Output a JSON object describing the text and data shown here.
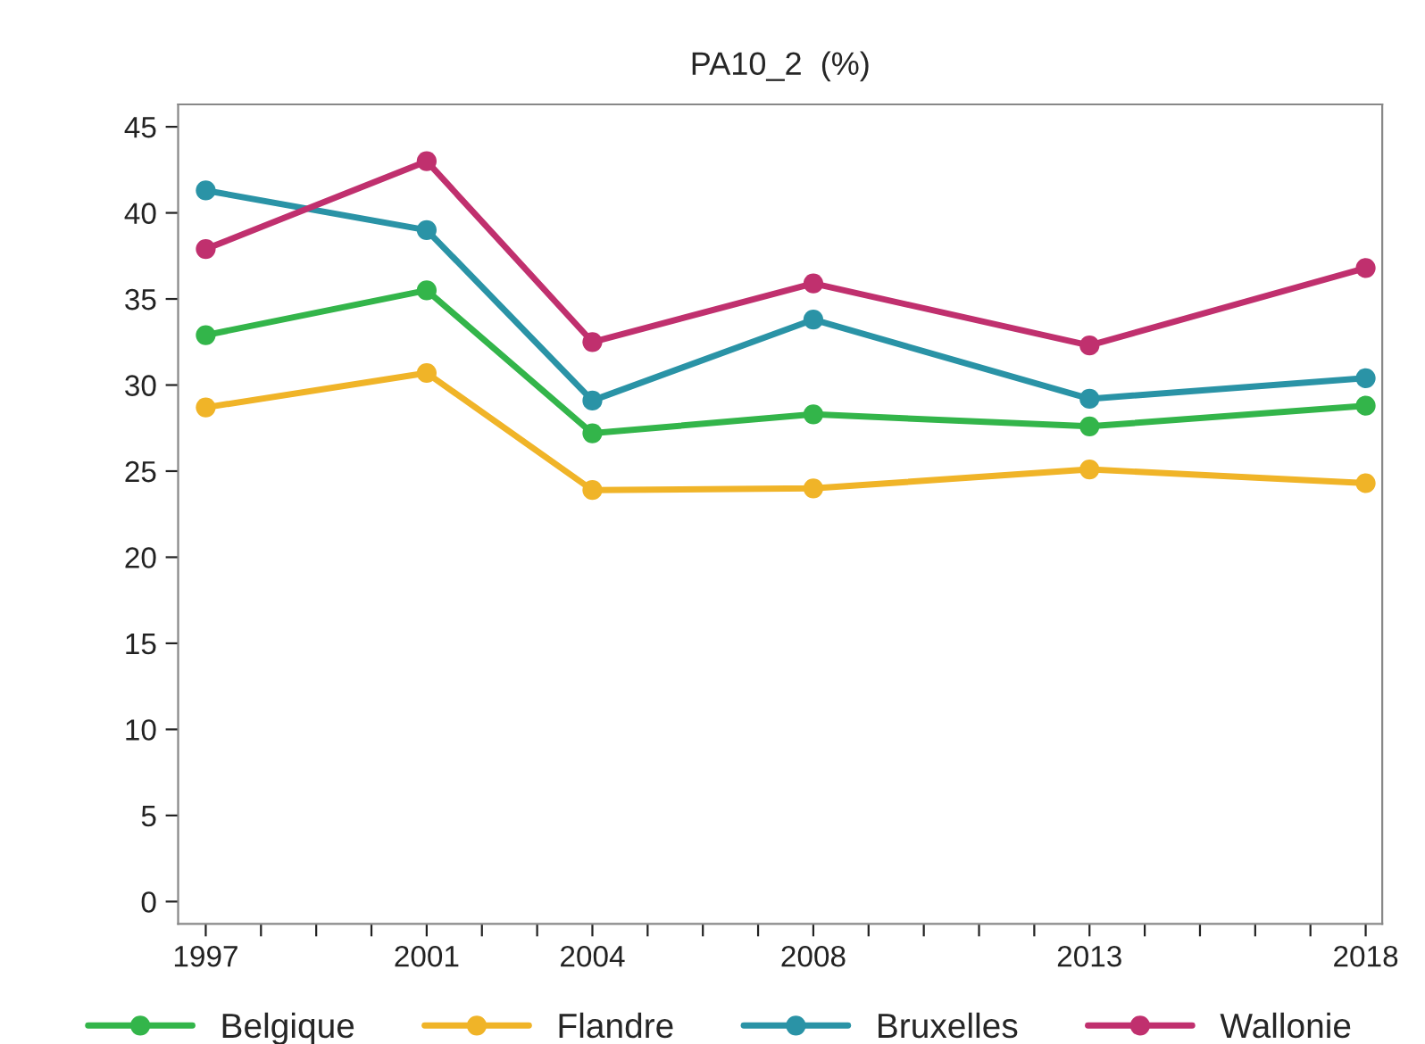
{
  "chart_data": {
    "type": "line",
    "title": "PA10_2  (%)",
    "x": [
      1997,
      2001,
      2004,
      2008,
      2013,
      2018
    ],
    "series": [
      {
        "name": "Belgique",
        "color": "#33b54a",
        "values": [
          32.9,
          35.5,
          27.2,
          28.3,
          27.6,
          28.8
        ]
      },
      {
        "name": "Flandre",
        "color": "#f0b428",
        "values": [
          28.7,
          30.7,
          23.9,
          24.0,
          25.1,
          24.3
        ]
      },
      {
        "name": "Bruxelles",
        "color": "#2a93a6",
        "values": [
          41.3,
          39.0,
          29.1,
          33.8,
          29.2,
          30.4
        ]
      },
      {
        "name": "Wallonie",
        "color": "#c0306e",
        "values": [
          37.9,
          43.0,
          32.5,
          35.9,
          32.3,
          36.8
        ]
      }
    ],
    "xlim": [
      1996.5,
      2018.3
    ],
    "ylim": [
      -1.3,
      46.3
    ],
    "xticks": [
      1997,
      {
        "value": 1998,
        "label": null
      },
      {
        "value": 1999,
        "label": null
      },
      {
        "value": 2000,
        "label": null
      },
      2001,
      {
        "value": 2002,
        "label": null
      },
      {
        "value": 2003,
        "label": null
      },
      2004,
      {
        "value": 2005,
        "label": null
      },
      {
        "value": 2006,
        "label": null
      },
      {
        "value": 2007,
        "label": null
      },
      2008,
      {
        "value": 2009,
        "label": null
      },
      {
        "value": 2010,
        "label": null
      },
      {
        "value": 2011,
        "label": null
      },
      {
        "value": 2012,
        "label": null
      },
      2013,
      {
        "value": 2014,
        "label": null
      },
      {
        "value": 2015,
        "label": null
      },
      {
        "value": 2016,
        "label": null
      },
      {
        "value": 2017,
        "label": null
      },
      2018
    ],
    "yticks": [
      0,
      5,
      10,
      15,
      20,
      25,
      30,
      35,
      40,
      45
    ],
    "grid": false,
    "legend": "bottom",
    "marker": "circle",
    "line_style": "solid"
  }
}
